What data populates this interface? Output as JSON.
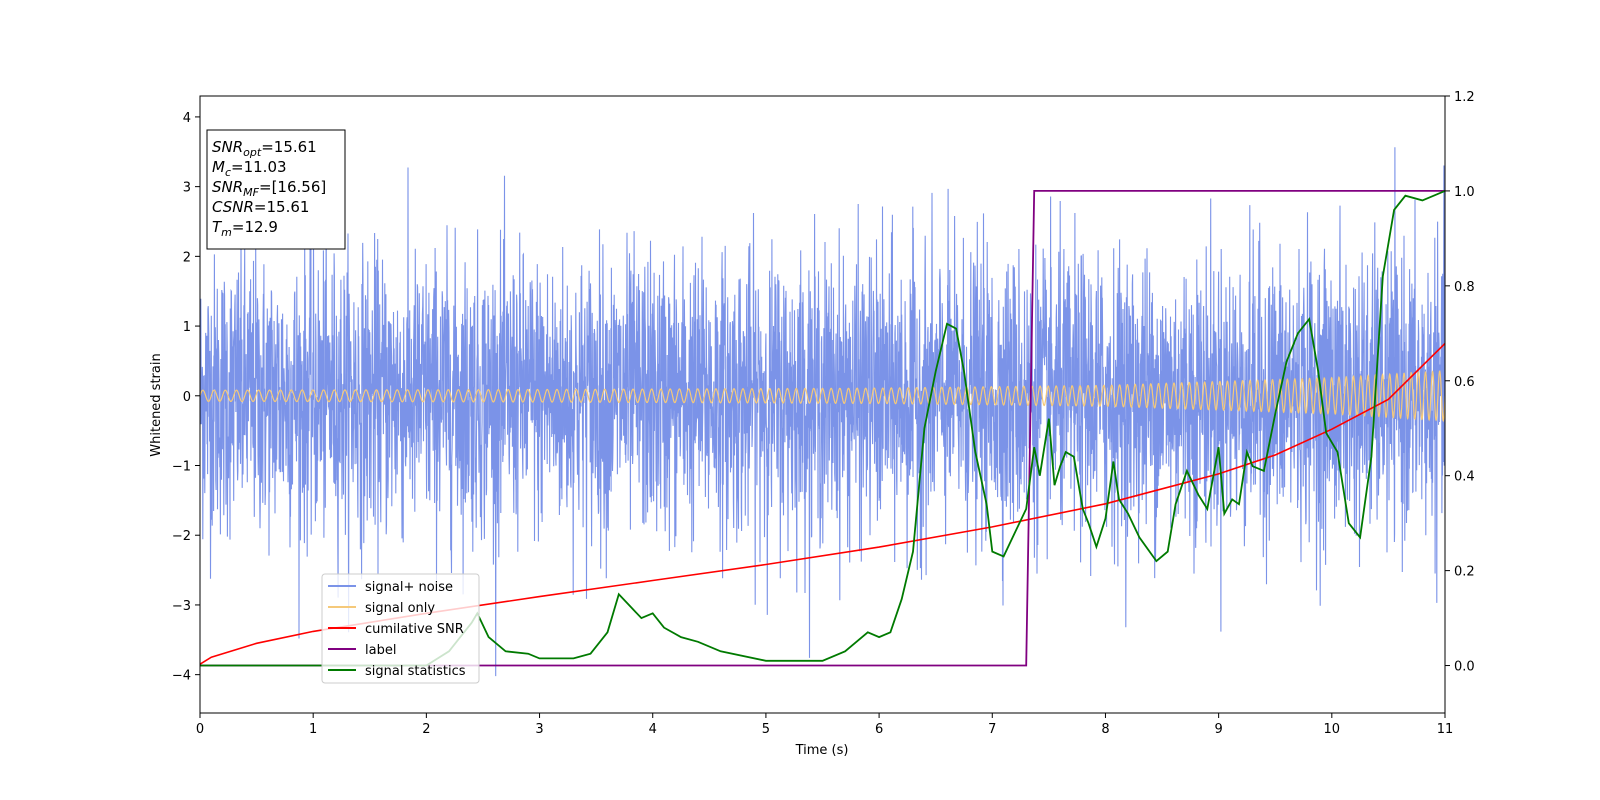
{
  "chart_data": {
    "type": "line",
    "xlabel": "Time (s)",
    "ylabel": "Whitened strain",
    "xlim": [
      0,
      11
    ],
    "ylim": [
      -4.55,
      4.3
    ],
    "y2lim": [
      -0.1,
      1.2
    ],
    "x_ticks": [
      "0",
      "1",
      "2",
      "3",
      "4",
      "5",
      "6",
      "7",
      "8",
      "9",
      "10",
      "11"
    ],
    "y_ticks": [
      "4",
      "3",
      "2",
      "1",
      "0",
      "−1",
      "−2",
      "−3",
      "−4"
    ],
    "y2_ticks": [
      "1.2",
      "1.0",
      "0.8",
      "0.6",
      "0.4",
      "0.2",
      "0.0"
    ],
    "grid": false,
    "legend_position": "lower-left",
    "info_box": {
      "position": "top-left",
      "lines": [
        {
          "main": "SNR",
          "sub": "opt",
          "value": "=15.61"
        },
        {
          "main": "M",
          "sub": "c",
          "value": "=11.03"
        },
        {
          "main": "SNR",
          "sub": "MF",
          "value": "=[16.56]"
        },
        {
          "main": "CSNR",
          "sub": "",
          "value": "=15.61"
        },
        {
          "main": "T",
          "sub": "m",
          "value": "=12.9"
        }
      ]
    },
    "series": [
      {
        "name": "signal+ noise",
        "color": "#7b93e8",
        "axis": "left",
        "style": "dense noise, std approx 1.0, peak excursions approx +3.8 / -4.15",
        "noise_std": 1.0
      },
      {
        "name": "signal only",
        "color": "#f5c97a",
        "axis": "left",
        "style": "chirp oscillation",
        "amplitude": {
          "x": [
            0,
            3,
            6,
            8,
            10,
            11
          ],
          "y": [
            0.08,
            0.09,
            0.11,
            0.15,
            0.26,
            0.36
          ]
        },
        "frequency_hz": {
          "start": 10,
          "end": 16
        }
      },
      {
        "name": "cumilative SNR",
        "color": "#ff0000",
        "axis": "left",
        "x": [
          0,
          0.1,
          0.5,
          1,
          2,
          3,
          4,
          5,
          6,
          7,
          8,
          9,
          9.5,
          10,
          10.5,
          11
        ],
        "y": [
          -3.85,
          -3.75,
          -3.55,
          -3.38,
          -3.12,
          -2.88,
          -2.65,
          -2.42,
          -2.17,
          -1.88,
          -1.55,
          -1.12,
          -0.85,
          -0.48,
          -0.05,
          0.75
        ]
      },
      {
        "name": "label",
        "color": "#800080",
        "axis": "right",
        "x": [
          0,
          7.3,
          7.37,
          11
        ],
        "y": [
          0.0,
          0.0,
          1.0,
          1.0
        ]
      },
      {
        "name": "signal statistics",
        "color": "#007a00",
        "axis": "right",
        "x": [
          0,
          1,
          2,
          2.2,
          2.4,
          2.45,
          2.55,
          2.7,
          2.9,
          3.0,
          3.3,
          3.45,
          3.6,
          3.7,
          3.78,
          3.9,
          4.0,
          4.1,
          4.25,
          4.4,
          4.6,
          5.0,
          5.5,
          5.7,
          5.9,
          6.0,
          6.1,
          6.2,
          6.3,
          6.4,
          6.5,
          6.6,
          6.68,
          6.75,
          6.85,
          6.95,
          7.0,
          7.1,
          7.2,
          7.3,
          7.37,
          7.42,
          7.5,
          7.55,
          7.6,
          7.65,
          7.72,
          7.8,
          7.85,
          7.92,
          8.0,
          8.07,
          8.12,
          8.2,
          8.3,
          8.45,
          8.55,
          8.62,
          8.72,
          8.82,
          8.9,
          9.0,
          9.05,
          9.12,
          9.18,
          9.25,
          9.3,
          9.4,
          9.5,
          9.6,
          9.7,
          9.8,
          9.88,
          9.95,
          10.05,
          10.15,
          10.25,
          10.35,
          10.45,
          10.55,
          10.65,
          10.8,
          10.9,
          11.0
        ],
        "y": [
          0.0,
          0.0,
          0.0,
          0.03,
          0.09,
          0.11,
          0.06,
          0.03,
          0.025,
          0.015,
          0.015,
          0.025,
          0.07,
          0.15,
          0.13,
          0.1,
          0.11,
          0.08,
          0.06,
          0.05,
          0.03,
          0.01,
          0.01,
          0.03,
          0.07,
          0.06,
          0.07,
          0.14,
          0.24,
          0.5,
          0.62,
          0.72,
          0.71,
          0.62,
          0.45,
          0.34,
          0.24,
          0.23,
          0.28,
          0.33,
          0.46,
          0.4,
          0.52,
          0.38,
          0.42,
          0.45,
          0.44,
          0.33,
          0.3,
          0.25,
          0.31,
          0.43,
          0.35,
          0.32,
          0.27,
          0.22,
          0.24,
          0.34,
          0.41,
          0.36,
          0.33,
          0.46,
          0.32,
          0.35,
          0.34,
          0.45,
          0.42,
          0.41,
          0.53,
          0.64,
          0.7,
          0.73,
          0.62,
          0.49,
          0.45,
          0.3,
          0.27,
          0.44,
          0.82,
          0.96,
          0.99,
          0.98,
          0.99,
          1.0
        ]
      }
    ]
  }
}
